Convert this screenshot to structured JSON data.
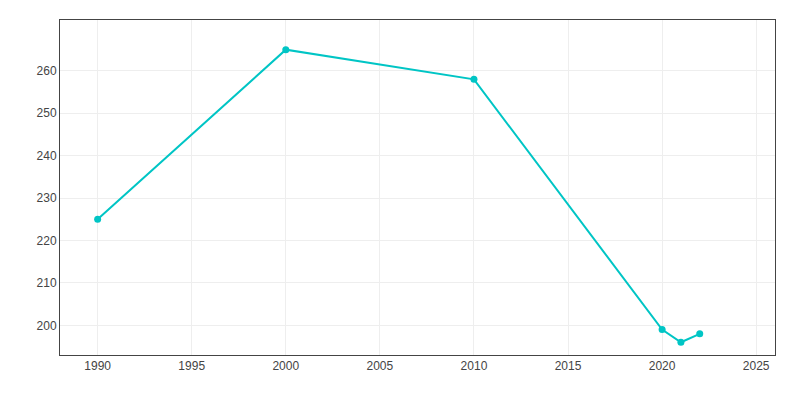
{
  "chart_data": {
    "type": "line",
    "x": [
      1990,
      2000,
      2010,
      2020,
      2021,
      2022
    ],
    "values": [
      225,
      265,
      258,
      199,
      196,
      198
    ],
    "color": "#00C5C5",
    "marker": "circle",
    "line_style": "solid",
    "xlim": [
      1988,
      2026
    ],
    "ylim": [
      193,
      272
    ],
    "xticks": [
      1990,
      1995,
      2000,
      2005,
      2010,
      2015,
      2020,
      2025
    ],
    "yticks": [
      200,
      210,
      220,
      230,
      240,
      250,
      260
    ],
    "grid": true
  }
}
